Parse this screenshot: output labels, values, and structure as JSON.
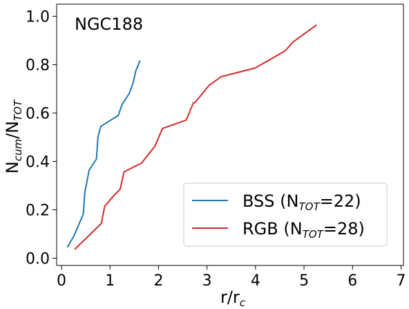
{
  "chart_data": {
    "type": "line",
    "annotation": "NGC188",
    "xlabel": {
      "main": "r/r",
      "sub": "c"
    },
    "ylabel": {
      "main": "N",
      "sub1": "cum",
      "mid": "/N",
      "sub2": "TOT"
    },
    "xlim": [
      -0.1,
      7.05
    ],
    "ylim": [
      -0.03,
      1.05
    ],
    "xticks": [
      0,
      1,
      2,
      3,
      4,
      5,
      6,
      7
    ],
    "yticks": [
      0.0,
      0.2,
      0.4,
      0.6,
      0.8,
      1.0
    ],
    "xtick_labels": [
      "0",
      "1",
      "2",
      "3",
      "4",
      "5",
      "6",
      "7"
    ],
    "ytick_labels": [
      "0.0",
      "0.2",
      "0.4",
      "0.6",
      "0.8",
      "1.0"
    ],
    "grid": false,
    "legend_placement": "lower-right",
    "series": [
      {
        "legend": {
          "name": "BSS (N",
          "sub": "TOT",
          "suffix": "=22)"
        },
        "color": "#1f77b4",
        "x": [
          0.12,
          0.25,
          0.45,
          0.48,
          0.57,
          0.72,
          0.75,
          0.81,
          1.17,
          1.25,
          1.4,
          1.48,
          1.53,
          1.62
        ],
        "y": [
          0.045,
          0.09,
          0.182,
          0.27,
          0.364,
          0.41,
          0.5,
          0.545,
          0.59,
          0.636,
          0.682,
          0.727,
          0.773,
          0.818
        ]
      },
      {
        "legend": {
          "name": "RGB (N",
          "sub": "TOT",
          "suffix": "=28)"
        },
        "color": "#d62728",
        "x": [
          0.27,
          0.82,
          0.89,
          1.04,
          1.21,
          1.29,
          1.65,
          1.93,
          2.08,
          2.57,
          2.72,
          2.75,
          3.04,
          3.29,
          3.99,
          4.61,
          4.77,
          5.26
        ],
        "y": [
          0.036,
          0.143,
          0.214,
          0.25,
          0.286,
          0.357,
          0.393,
          0.464,
          0.536,
          0.571,
          0.643,
          0.643,
          0.714,
          0.75,
          0.786,
          0.857,
          0.893,
          0.964
        ]
      }
    ]
  }
}
